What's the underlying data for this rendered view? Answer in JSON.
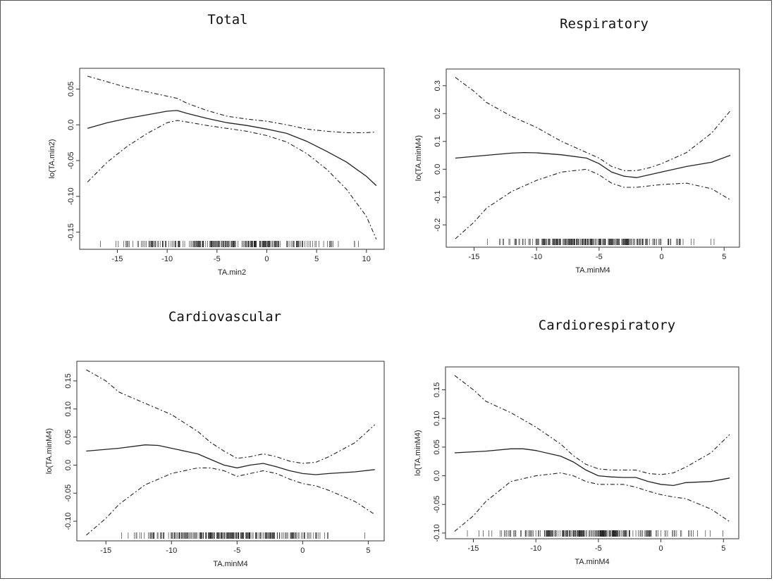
{
  "chart_data": [
    {
      "type": "line",
      "title": "Total",
      "xlabel": "TA.min2",
      "ylabel": "lo(TA.min2)",
      "xlim": [
        -18.5,
        11.5
      ],
      "ylim": [
        -0.17,
        0.075
      ],
      "xticks": [
        "-15",
        "-10",
        "-5",
        "0",
        "5",
        "10"
      ],
      "yticks": [
        "-0.15",
        "-0.10",
        "-0.05",
        "0.0",
        "0.05"
      ],
      "rug_range": [
        -18,
        11
      ],
      "series": [
        {
          "style": "solid",
          "x": [
            -18,
            -16,
            -14,
            -12,
            -10,
            -9,
            -8,
            -6,
            -4,
            -2,
            0,
            2,
            4,
            6,
            8,
            10,
            11
          ],
          "y": [
            -0.005,
            0.003,
            0.009,
            0.014,
            0.019,
            0.02,
            0.016,
            0.009,
            0.003,
            -0.001,
            -0.006,
            -0.012,
            -0.023,
            -0.037,
            -0.052,
            -0.072,
            -0.085
          ]
        },
        {
          "style": "dashed",
          "x": [
            -18,
            -16,
            -14,
            -12,
            -10,
            -9,
            -8,
            -6,
            -4,
            -2,
            0,
            2,
            4,
            6,
            8,
            10,
            11
          ],
          "y": [
            0.068,
            0.06,
            0.052,
            0.046,
            0.04,
            0.037,
            0.03,
            0.02,
            0.012,
            0.008,
            0.005,
            0.0,
            -0.006,
            -0.009,
            -0.011,
            -0.011,
            -0.01
          ]
        },
        {
          "style": "dashed",
          "x": [
            -18,
            -16,
            -14,
            -12,
            -10,
            -9,
            -8,
            -6,
            -4,
            -2,
            0,
            2,
            4,
            6,
            8,
            10,
            11
          ],
          "y": [
            -0.08,
            -0.052,
            -0.03,
            -0.012,
            0.003,
            0.006,
            0.004,
            -0.001,
            -0.005,
            -0.009,
            -0.015,
            -0.024,
            -0.04,
            -0.062,
            -0.09,
            -0.128,
            -0.16
          ]
        }
      ]
    },
    {
      "type": "line",
      "title": "Respiratory",
      "xlabel": "TA.minM4",
      "ylabel": "lo(TA.minM4)",
      "xlim": [
        -17,
        6
      ],
      "ylim": [
        -0.27,
        0.35
      ],
      "xticks": [
        "-15",
        "-10",
        "-5",
        "0",
        "5"
      ],
      "yticks": [
        "-0.2",
        "-0.1",
        "0.0",
        "0.1",
        "0.2",
        "0.3"
      ],
      "rug_range": [
        -16.5,
        5.5
      ],
      "series": [
        {
          "style": "solid",
          "x": [
            -16.5,
            -14,
            -12,
            -11,
            -10,
            -8,
            -6,
            -5,
            -4,
            -3,
            -2,
            -1,
            0,
            2,
            4,
            5.5
          ],
          "y": [
            0.04,
            0.05,
            0.058,
            0.06,
            0.059,
            0.052,
            0.04,
            0.02,
            -0.01,
            -0.025,
            -0.03,
            -0.02,
            -0.01,
            0.01,
            0.025,
            0.05
          ]
        },
        {
          "style": "dashed",
          "x": [
            -16.5,
            -15,
            -14,
            -12,
            -10,
            -8,
            -6,
            -5,
            -4,
            -3,
            -2,
            -1,
            0,
            2,
            4,
            5.5
          ],
          "y": [
            0.33,
            0.28,
            0.24,
            0.19,
            0.15,
            0.1,
            0.06,
            0.04,
            0.01,
            -0.005,
            -0.005,
            0.005,
            0.02,
            0.06,
            0.13,
            0.21
          ]
        },
        {
          "style": "dashed",
          "x": [
            -16.5,
            -15,
            -14,
            -12,
            -10,
            -8,
            -6,
            -5,
            -4,
            -3,
            -2,
            -1,
            0,
            2,
            4,
            5.5
          ],
          "y": [
            -0.25,
            -0.19,
            -0.14,
            -0.08,
            -0.04,
            -0.01,
            0.0,
            -0.02,
            -0.05,
            -0.065,
            -0.065,
            -0.06,
            -0.055,
            -0.05,
            -0.07,
            -0.11
          ]
        }
      ]
    },
    {
      "type": "line",
      "title": "Cardiovascular",
      "xlabel": "TA.minM4",
      "ylabel": "lo(TA.minM4)",
      "xlim": [
        -17,
        6
      ],
      "ylim": [
        -0.13,
        0.18
      ],
      "xticks": [
        "-15",
        "-10",
        "-5",
        "0",
        "5"
      ],
      "yticks": [
        "-0.10",
        "-0.05",
        "0.0",
        "0.05",
        "0.10",
        "0.15"
      ],
      "rug_range": [
        -16.5,
        5.5
      ],
      "series": [
        {
          "style": "solid",
          "x": [
            -16.5,
            -14,
            -12,
            -11,
            -10,
            -8,
            -7,
            -6,
            -5,
            -4,
            -3,
            -2,
            -1,
            0,
            1,
            2,
            4,
            5.5
          ],
          "y": [
            0.025,
            0.03,
            0.036,
            0.035,
            0.03,
            0.02,
            0.01,
            0.0,
            -0.005,
            0.0,
            0.003,
            -0.003,
            -0.01,
            -0.015,
            -0.017,
            -0.015,
            -0.012,
            -0.008
          ]
        },
        {
          "style": "dashed",
          "x": [
            -16.5,
            -15,
            -14,
            -12,
            -10,
            -8,
            -7,
            -6,
            -5,
            -4,
            -3,
            -2,
            -1,
            0,
            1,
            2,
            4,
            5.5
          ],
          "y": [
            0.17,
            0.15,
            0.13,
            0.11,
            0.09,
            0.06,
            0.04,
            0.025,
            0.012,
            0.015,
            0.02,
            0.015,
            0.007,
            0.003,
            0.005,
            0.015,
            0.04,
            0.072
          ]
        },
        {
          "style": "dashed",
          "x": [
            -16.5,
            -15,
            -14,
            -12,
            -10,
            -8,
            -7,
            -6,
            -5,
            -4,
            -3,
            -2,
            -1,
            0,
            1,
            2,
            4,
            5.5
          ],
          "y": [
            -0.125,
            -0.095,
            -0.07,
            -0.035,
            -0.015,
            -0.005,
            -0.005,
            -0.01,
            -0.02,
            -0.015,
            -0.01,
            -0.015,
            -0.025,
            -0.033,
            -0.037,
            -0.045,
            -0.065,
            -0.088
          ]
        }
      ]
    },
    {
      "type": "line",
      "title": "Cardiorespiratory",
      "xlabel": "TA.minM4",
      "ylabel": "lo(TA.minM4)",
      "xlim": [
        -17,
        6
      ],
      "ylim": [
        -0.105,
        0.185
      ],
      "xticks": [
        "-15",
        "-10",
        "-5",
        "0",
        "5"
      ],
      "yticks": [
        "-0.10",
        "-0.05",
        "0.0",
        "0.05",
        "0.10",
        "0.15"
      ],
      "rug_range": [
        -16.5,
        5.5
      ],
      "series": [
        {
          "style": "solid",
          "x": [
            -16.5,
            -14,
            -12,
            -11,
            -10,
            -8,
            -7,
            -6,
            -5,
            -4,
            -3,
            -2,
            -1,
            0,
            1,
            2,
            4,
            5.5
          ],
          "y": [
            0.04,
            0.043,
            0.047,
            0.047,
            0.044,
            0.034,
            0.024,
            0.01,
            0.0,
            -0.002,
            -0.003,
            -0.003,
            -0.01,
            -0.015,
            -0.017,
            -0.012,
            -0.01,
            -0.004
          ]
        },
        {
          "style": "dashed",
          "x": [
            -16.5,
            -15,
            -14,
            -12,
            -10,
            -8,
            -7,
            -6,
            -5,
            -4,
            -3,
            -2,
            -1,
            0,
            1,
            2,
            4,
            5.5
          ],
          "y": [
            0.175,
            0.15,
            0.13,
            0.11,
            0.085,
            0.055,
            0.035,
            0.02,
            0.012,
            0.01,
            0.01,
            0.01,
            0.004,
            0.002,
            0.005,
            0.015,
            0.04,
            0.072
          ]
        },
        {
          "style": "dashed",
          "x": [
            -16.5,
            -15,
            -14,
            -12,
            -10,
            -8,
            -7,
            -6,
            -5,
            -4,
            -3,
            -2,
            -1,
            0,
            1,
            2,
            4,
            5.5
          ],
          "y": [
            -0.097,
            -0.07,
            -0.045,
            -0.01,
            0.0,
            0.005,
            0.0,
            -0.01,
            -0.015,
            -0.015,
            -0.015,
            -0.02,
            -0.027,
            -0.033,
            -0.037,
            -0.04,
            -0.058,
            -0.08
          ]
        }
      ]
    }
  ]
}
